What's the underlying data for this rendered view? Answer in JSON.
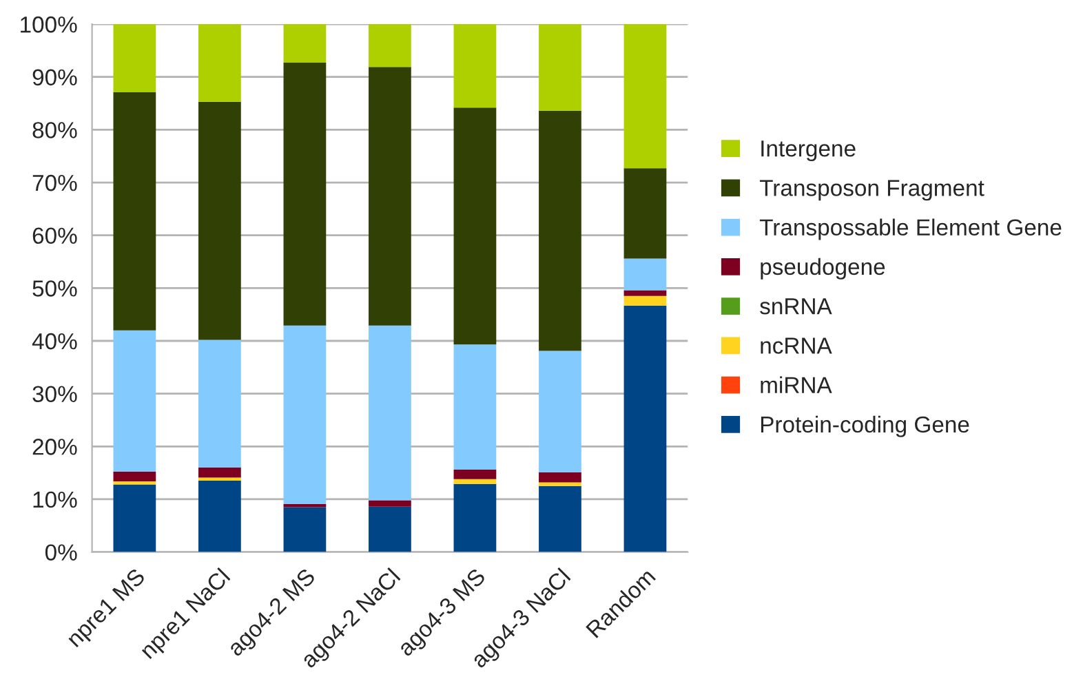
{
  "chart_data": {
    "type": "bar",
    "stacked": true,
    "categories": [
      "npre1 MS",
      "npre1 NaCl",
      "ago4-2 MS",
      "ago4-2 NaCl",
      "ago4-3 MS",
      "ago4-3 NaCl",
      "Random"
    ],
    "series": [
      {
        "name": "Protein-coding Gene",
        "color": "#004586",
        "values": [
          12.8,
          13.5,
          8.5,
          8.6,
          12.9,
          12.5,
          46.7
        ]
      },
      {
        "name": "miRNA",
        "color": "#ff420e",
        "values": [
          0,
          0,
          0,
          0,
          0,
          0,
          0
        ]
      },
      {
        "name": "ncRNA",
        "color": "#ffd320",
        "values": [
          0.6,
          0.6,
          0,
          0,
          0.9,
          0.7,
          1.8
        ]
      },
      {
        "name": "snRNA",
        "color": "#579d1c",
        "values": [
          0,
          0,
          0,
          0,
          0,
          0,
          0
        ]
      },
      {
        "name": "pseudogene",
        "color": "#7e0021",
        "values": [
          1.8,
          1.9,
          0.6,
          1.2,
          1.8,
          1.9,
          1.1
        ]
      },
      {
        "name": "Transpossable Element Gene",
        "color": "#83caff",
        "values": [
          26.8,
          24.2,
          33.8,
          33.1,
          23.7,
          23.0,
          6.0
        ]
      },
      {
        "name": "Transposon Fragment",
        "color": "#314004",
        "values": [
          45.1,
          45.1,
          49.8,
          49.0,
          44.9,
          45.5,
          17.1
        ]
      },
      {
        "name": "Intergene",
        "color": "#aecf00",
        "values": [
          12.9,
          14.7,
          7.3,
          8.1,
          15.8,
          16.4,
          27.3
        ]
      }
    ],
    "ylim": [
      0,
      100
    ],
    "yticks": [
      {
        "value": 0,
        "label": "0%"
      },
      {
        "value": 10,
        "label": "10%"
      },
      {
        "value": 20,
        "label": "20%"
      },
      {
        "value": 30,
        "label": "30%"
      },
      {
        "value": 40,
        "label": "40%"
      },
      {
        "value": 50,
        "label": "50%"
      },
      {
        "value": 60,
        "label": "60%"
      },
      {
        "value": 70,
        "label": "70%"
      },
      {
        "value": 80,
        "label": "80%"
      },
      {
        "value": 90,
        "label": "90%"
      },
      {
        "value": 100,
        "label": "100%"
      }
    ],
    "grid": "y",
    "legend": "right"
  }
}
